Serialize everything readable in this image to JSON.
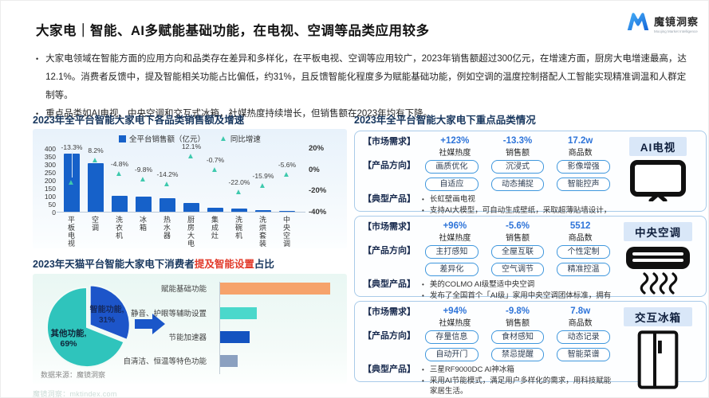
{
  "colors": {
    "bar_blue": "#1661c9",
    "growth_teal": "#3ec9ad",
    "pie_blue": "#1d55c9",
    "pie_teal": "#2fc4bc",
    "hbar_colors": [
      "#f6a36b",
      "#4ad8cb",
      "#1353c0",
      "#8ba0c0"
    ],
    "metric_blue": "#2e74d9",
    "title_navy": "#17365d",
    "highlight_red": "#e23a2a",
    "arrow_blue": "#1a56c9",
    "tag_bg": "#d9e7f8",
    "panel_border": "#a9cbe9"
  },
  "header": {
    "title": "大家电｜智能、AI多赋能基础功能，在电视、空调等品类应用较多",
    "logo_name": "魔镜洞察",
    "logo_subtitle": "Moojing Market Intelligence"
  },
  "bullets": [
    "大家电领域在智能方面的应用方向和品类存在差异和多样化，在平板电视、空调等应用较广，2023年销售额超过300亿元，在增速方面，厨房大电增速最高，达12.1%。消费者反馈中，提及智能相关功能占比偏低，约31%，且反馈智能化程度多为赋能基础功能，例如空调的温度控制搭配人工智能实现精准调温和人群定制等。",
    "重点品类如AI电视、中央空调和交互式冰箱，社媒热度持续增长，但销售额在2023年均有下降。"
  ],
  "left_section": {
    "chart1_title": "2023年全平台智能大家电下各品类销售额及增速",
    "chart2_title_prefix": "2023年天猫平台智能大家电下消费者",
    "chart2_title_highlight": "提及智能设置",
    "chart2_title_suffix": "占比",
    "source": "数据来源：魔镜洞察",
    "site_footer": "魔镜洞察：mktindex.com"
  },
  "chart_data": [
    {
      "type": "bar",
      "title": "2023年全平台智能大家电下各品类销售额及增速",
      "categories": [
        "平板电视",
        "空调",
        "洗衣机",
        "冰箱",
        "热水器",
        "厨房大电",
        "集成灶",
        "洗碗机",
        "洗烘套装",
        "中央空调"
      ],
      "series": [
        {
          "name": "全平台销售额（亿元）",
          "type": "bar",
          "axis": "left",
          "values": [
            365,
            305,
            100,
            95,
            85,
            55,
            25,
            18,
            10,
            4
          ],
          "values_estimated": true
        },
        {
          "name": "同比增速",
          "type": "scatter-triangle",
          "axis": "right",
          "unit": "%",
          "values": [
            -13.3,
            8.2,
            -4.8,
            -9.8,
            -14.2,
            12.1,
            -0.7,
            -22.0,
            -15.9,
            -5.6
          ]
        }
      ],
      "ylim_left": [
        0,
        400
      ],
      "yticks_left": [
        400,
        350,
        300,
        250,
        200,
        150,
        100,
        50,
        0
      ],
      "ylim_right": [
        -40,
        20
      ],
      "yticks_right": [
        20,
        0,
        -20,
        -40
      ],
      "legend_position": "top",
      "grid": false
    },
    {
      "type": "pie",
      "title": "2023年天猫平台智能大家电下消费者提及智能设置占比",
      "slices": [
        {
          "label": "智能功能",
          "value": 31,
          "exploded": true
        },
        {
          "label": "其他功能",
          "value": 69
        }
      ],
      "start_angle": "12-oclock",
      "direction": "clockwise"
    },
    {
      "type": "bar",
      "orientation": "horizontal",
      "title": "2023年天猫平台智能大家电下消费者提及智能设置占比",
      "categories": [
        "赋能基础功能",
        "静音、护眼等辅助设置",
        "节能加速器",
        "自清洁、恒温等特色功能"
      ],
      "values": [
        100,
        33,
        27,
        16
      ],
      "values_estimated_relative": true,
      "value_labels_shown": false
    }
  ],
  "right_section": {
    "title": "2023年全平台智能大家电下重点品类情况",
    "row_labels": [
      "【市场需求】",
      "【产品方向】",
      "【典型产品】"
    ],
    "panels": [
      {
        "tag": "AI电视",
        "icon": "tv-icon",
        "metrics": [
          {
            "value": "+123%",
            "label": "社媒热度"
          },
          {
            "value": "-13.3%",
            "label": "销售额"
          },
          {
            "value": "17.2w",
            "label": "商品数"
          }
        ],
        "chips": [
          "画质优化",
          "沉浸式",
          "影像增强",
          "自适应",
          "动态捕捉",
          "智能控声"
        ],
        "products": [
          "长虹壁画电视",
          "支持AI大模型，可自动生成壁纸，采取超薄贴墙设计，和家居完美融合。"
        ]
      },
      {
        "tag": "中央空调",
        "icon": "ac-icon",
        "metrics": [
          {
            "value": "+96%",
            "label": "社媒热度"
          },
          {
            "value": "-5.6%",
            "label": "销售额"
          },
          {
            "value": "5512",
            "label": "商品数"
          }
        ],
        "chips": [
          "主打感知",
          "全屋互联",
          "个性定制",
          "差异化",
          "空气调节",
          "精准控温"
        ],
        "products": [
          "美的COLMO AI级墅适中央空调",
          "发布了全国首个「AI级」家用中央空调团体标准，拥有独有的AI灵境系统。"
        ]
      },
      {
        "tag": "交互冰箱",
        "icon": "fridge-icon",
        "metrics": [
          {
            "value": "+94%",
            "label": "社媒热度"
          },
          {
            "value": "-9.8%",
            "label": "销售额"
          },
          {
            "value": "7.8w",
            "label": "商品数"
          }
        ],
        "chips": [
          "存量信息",
          "食材感知",
          "动态记录",
          "自动开门",
          "禁忌提醒",
          "智能菜谱"
        ],
        "products": [
          "三星RF9000DC AI神冰箱",
          "采用AI节能模式，满足用户多样化的需求，用科技赋能家居生活。"
        ]
      }
    ]
  }
}
